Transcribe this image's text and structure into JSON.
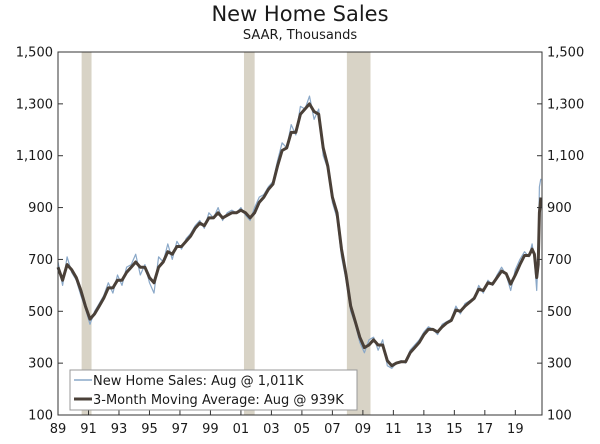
{
  "chart_data": {
    "type": "line",
    "title": "New Home Sales",
    "subtitle": "SAAR, Thousands",
    "xlabel": "",
    "ylabel": "",
    "xlim": [
      1989.0,
      2020.75
    ],
    "ylim": [
      100,
      1500
    ],
    "y_ticks": [
      "100",
      "300",
      "500",
      "700",
      "900",
      "1,100",
      "1,300",
      "1,500"
    ],
    "y_tick_values": [
      100,
      300,
      500,
      700,
      900,
      1100,
      1300,
      1500
    ],
    "x_ticks": [
      "89",
      "91",
      "93",
      "95",
      "97",
      "99",
      "01",
      "03",
      "05",
      "07",
      "09",
      "11",
      "13",
      "15",
      "17",
      "19"
    ],
    "x_tick_values": [
      1989,
      1991,
      1993,
      1995,
      1997,
      1999,
      2001,
      2003,
      2005,
      2007,
      2009,
      2011,
      2013,
      2015,
      2017,
      2019
    ],
    "recessions": [
      [
        1990.55,
        1991.2
      ],
      [
        2001.2,
        2001.9
      ],
      [
        2007.95,
        2009.5
      ]
    ],
    "series": [
      {
        "name": "New Home Sales: Aug @ 1,011K",
        "color": "#8aa8c8",
        "x": [
          1989.0,
          1989.3,
          1989.6,
          1989.9,
          1990.2,
          1990.5,
          1990.8,
          1991.1,
          1991.4,
          1991.7,
          1992.0,
          1992.3,
          1992.6,
          1992.9,
          1993.2,
          1993.5,
          1993.8,
          1994.1,
          1994.4,
          1994.7,
          1995.0,
          1995.3,
          1995.6,
          1995.9,
          1996.2,
          1996.5,
          1996.8,
          1997.1,
          1997.4,
          1997.7,
          1998.0,
          1998.3,
          1998.6,
          1998.9,
          1999.2,
          1999.5,
          1999.8,
          2000.1,
          2000.4,
          2000.7,
          2001.0,
          2001.3,
          2001.6,
          2001.9,
          2002.2,
          2002.5,
          2002.8,
          2003.1,
          2003.4,
          2003.7,
          2004.0,
          2004.3,
          2004.6,
          2004.9,
          2005.2,
          2005.5,
          2005.8,
          2006.1,
          2006.4,
          2006.7,
          2007.0,
          2007.3,
          2007.6,
          2007.9,
          2008.2,
          2008.5,
          2008.8,
          2009.1,
          2009.4,
          2009.7,
          2010.0,
          2010.3,
          2010.6,
          2010.9,
          2011.2,
          2011.5,
          2011.8,
          2012.1,
          2012.4,
          2012.7,
          2013.0,
          2013.3,
          2013.6,
          2013.9,
          2014.2,
          2014.5,
          2014.8,
          2015.1,
          2015.4,
          2015.7,
          2016.0,
          2016.3,
          2016.6,
          2016.9,
          2017.2,
          2017.5,
          2017.8,
          2018.1,
          2018.4,
          2018.7,
          2019.0,
          2019.3,
          2019.6,
          2019.9,
          2020.1,
          2020.25,
          2020.4,
          2020.5,
          2020.58,
          2020.67
        ],
        "values": [
          690,
          600,
          710,
          650,
          620,
          560,
          510,
          450,
          500,
          530,
          560,
          610,
          570,
          640,
          600,
          670,
          680,
          720,
          640,
          680,
          610,
          570,
          710,
          690,
          760,
          700,
          770,
          740,
          780,
          800,
          830,
          850,
          820,
          880,
          860,
          900,
          850,
          880,
          890,
          880,
          900,
          870,
          850,
          900,
          940,
          950,
          980,
          1000,
          1080,
          1150,
          1130,
          1220,
          1180,
          1290,
          1280,
          1330,
          1240,
          1280,
          1100,
          1050,
          920,
          860,
          710,
          620,
          500,
          450,
          380,
          340,
          390,
          400,
          350,
          390,
          290,
          280,
          300,
          310,
          300,
          350,
          370,
          390,
          420,
          440,
          430,
          410,
          450,
          460,
          470,
          520,
          490,
          530,
          540,
          550,
          600,
          570,
          620,
          600,
          640,
          670,
          640,
          580,
          660,
          700,
          730,
          710,
          760,
          700,
          580,
          720,
          980,
          1011
        ]
      },
      {
        "name": "3-Month Moving Average: Aug @ 939K",
        "color": "#4a4038",
        "x": [
          1989.0,
          1989.3,
          1989.6,
          1989.9,
          1990.2,
          1990.5,
          1990.8,
          1991.1,
          1991.4,
          1991.7,
          1992.0,
          1992.3,
          1992.6,
          1992.9,
          1993.2,
          1993.5,
          1993.8,
          1994.1,
          1994.4,
          1994.7,
          1995.0,
          1995.3,
          1995.6,
          1995.9,
          1996.2,
          1996.5,
          1996.8,
          1997.1,
          1997.4,
          1997.7,
          1998.0,
          1998.3,
          1998.6,
          1998.9,
          1999.2,
          1999.5,
          1999.8,
          2000.1,
          2000.4,
          2000.7,
          2001.0,
          2001.3,
          2001.6,
          2001.9,
          2002.2,
          2002.5,
          2002.8,
          2003.1,
          2003.4,
          2003.7,
          2004.0,
          2004.3,
          2004.6,
          2004.9,
          2005.2,
          2005.5,
          2005.8,
          2006.1,
          2006.4,
          2006.7,
          2007.0,
          2007.3,
          2007.6,
          2007.9,
          2008.2,
          2008.5,
          2008.8,
          2009.1,
          2009.4,
          2009.7,
          2010.0,
          2010.3,
          2010.6,
          2010.9,
          2011.2,
          2011.5,
          2011.8,
          2012.1,
          2012.4,
          2012.7,
          2013.0,
          2013.3,
          2013.6,
          2013.9,
          2014.2,
          2014.5,
          2014.8,
          2015.1,
          2015.4,
          2015.7,
          2016.0,
          2016.3,
          2016.6,
          2016.9,
          2017.2,
          2017.5,
          2017.8,
          2018.1,
          2018.4,
          2018.7,
          2019.0,
          2019.3,
          2019.6,
          2019.9,
          2020.1,
          2020.25,
          2020.4,
          2020.5,
          2020.58,
          2020.67
        ],
        "values": [
          670,
          620,
          680,
          660,
          630,
          580,
          520,
          470,
          490,
          520,
          550,
          590,
          590,
          620,
          620,
          650,
          670,
          690,
          670,
          670,
          630,
          610,
          670,
          690,
          730,
          720,
          750,
          750,
          770,
          790,
          820,
          840,
          830,
          860,
          860,
          880,
          860,
          870,
          880,
          880,
          890,
          880,
          860,
          880,
          920,
          940,
          970,
          990,
          1060,
          1120,
          1130,
          1190,
          1190,
          1260,
          1280,
          1300,
          1270,
          1260,
          1130,
          1060,
          940,
          880,
          740,
          640,
          520,
          460,
          400,
          360,
          370,
          390,
          370,
          370,
          310,
          290,
          300,
          305,
          305,
          340,
          360,
          380,
          410,
          430,
          430,
          420,
          440,
          455,
          465,
          505,
          500,
          520,
          535,
          550,
          585,
          580,
          610,
          605,
          630,
          655,
          645,
          605,
          640,
          680,
          715,
          715,
          740,
          720,
          630,
          680,
          880,
          939
        ]
      }
    ]
  }
}
